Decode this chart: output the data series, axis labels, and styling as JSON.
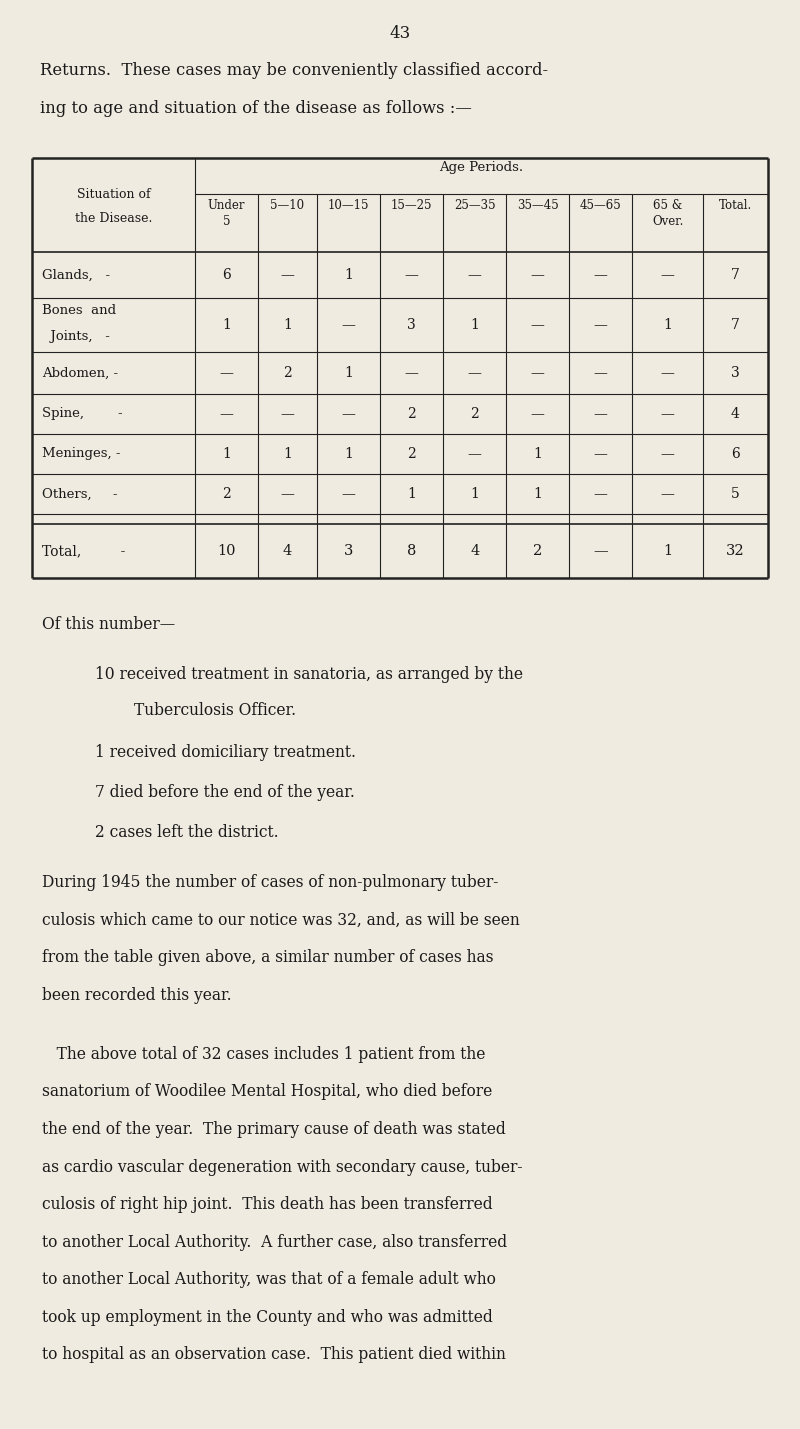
{
  "bg_color": "#f0ebe0",
  "text_color": "#1a1a1a",
  "page_number": "43",
  "intro_line1": "Returns.  These cases may be conveniently classified accord-",
  "intro_line2": "ing to age and situation of the disease as follows :—",
  "table_header_top": "Age Periods.",
  "table_col_headers": [
    "Under\n5",
    "5—10",
    "10—15",
    "15—25",
    "25—35",
    "35—45",
    "45—65",
    "65 &\nOver.",
    "Total."
  ],
  "row_label_col_line1": "Situation of",
  "row_label_col_line2": "the Disease.",
  "table_rows": [
    {
      "label_lines": [
        "Glands,   -"
      ],
      "values": [
        "6",
        "—",
        "1",
        "—",
        "—",
        "—",
        "—",
        "—",
        "7"
      ],
      "tall": false
    },
    {
      "label_lines": [
        "Bones  and",
        "  Joints,   -"
      ],
      "values": [
        "1",
        "1",
        "—",
        "3",
        "1",
        "—",
        "—",
        "1",
        "7"
      ],
      "tall": true
    },
    {
      "label_lines": [
        "Abdomen, -"
      ],
      "values": [
        "—",
        "2",
        "1",
        "—",
        "—",
        "—",
        "—",
        "—",
        "3"
      ],
      "tall": false
    },
    {
      "label_lines": [
        "Spine,        -"
      ],
      "values": [
        "—",
        "—",
        "—",
        "2",
        "2",
        "—",
        "—",
        "—",
        "4"
      ],
      "tall": false
    },
    {
      "label_lines": [
        "Meninges, -"
      ],
      "values": [
        "1",
        "1",
        "1",
        "2",
        "—",
        "1",
        "—",
        "—",
        "6"
      ],
      "tall": false
    },
    {
      "label_lines": [
        "Others,     -"
      ],
      "values": [
        "2",
        "—",
        "—",
        "1",
        "1",
        "1",
        "—",
        "—",
        "5"
      ],
      "tall": false
    }
  ],
  "total_row": {
    "label_lines": [
      "Total,         -"
    ],
    "values": [
      "10",
      "4",
      "3",
      "8",
      "4",
      "2",
      "—",
      "1",
      "32"
    ]
  },
  "of_this_number": "Of this number—",
  "bullet1_line1": "10 received treatment in sanatoria, as arranged by the",
  "bullet1_line2": "        Tuberculosis Officer.",
  "bullet2": "1 received domiciliary treatment.",
  "bullet3": "7 died before the end of the year.",
  "bullet4": "2 cases left the district.",
  "para1_lines": [
    "During 1945 the number of cases of non-pulmonary tuber-",
    "culosis which came to our notice was 32, and, as will be seen",
    "from the table given above, a similar number of cases has",
    "been recorded this year."
  ],
  "para2_lines": [
    "   The above total of 32 cases includes 1 patient from the",
    "sanatorium of Woodilee Mental Hospital, who died before",
    "the end of the year.  The primary cause of death was stated",
    "as cardio vascular degeneration with secondary cause, tuber-",
    "culosis of right hip joint.  This death has been transferred",
    "to another Local Authority.  A further case, also transferred",
    "to another Local Authority, was that of a female adult who",
    "took up employment in the County and who was admitted",
    "to hospital as an observation case.  This patient died within"
  ]
}
